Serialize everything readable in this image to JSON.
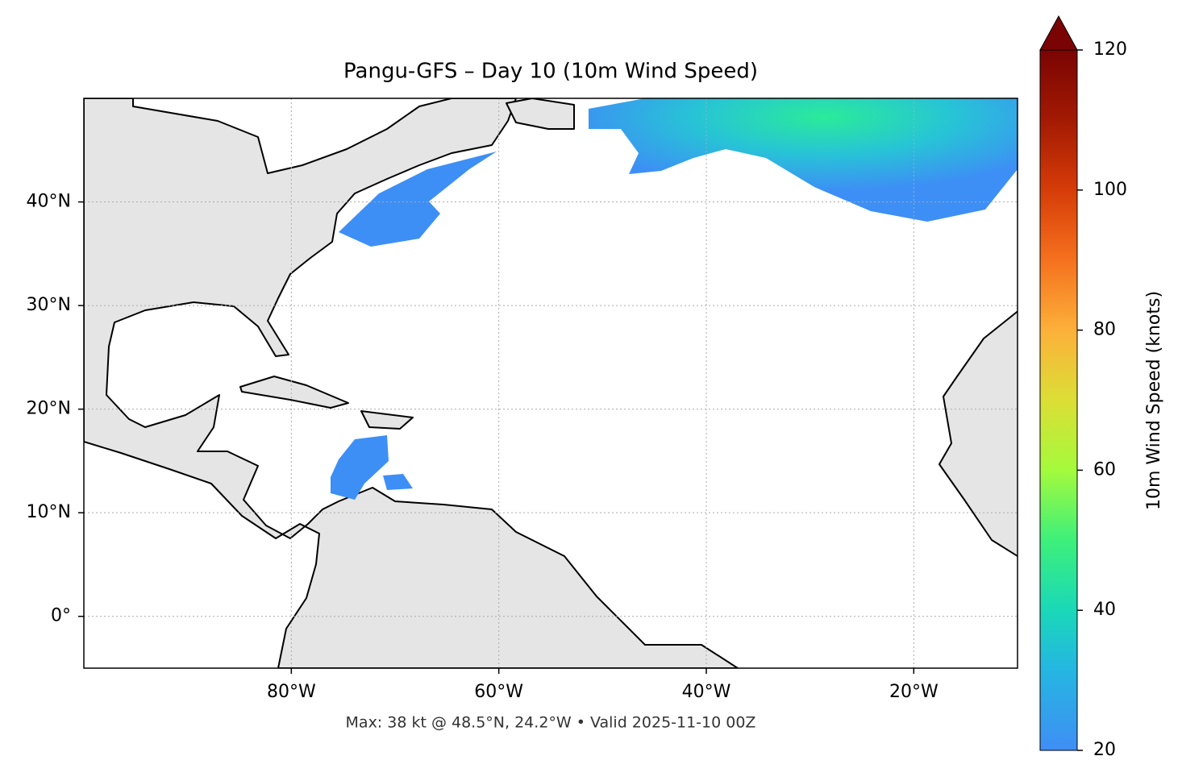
{
  "title": "Pangu-GFS – Day 10 (10m Wind Speed)",
  "footer": "Max: 38 kt @ 48.5°N, 24.2°W • Valid 2025-11-10 00Z",
  "map": {
    "xlim": [
      -100,
      -10
    ],
    "ylim": [
      -5,
      50
    ],
    "grid": true,
    "xticks": [
      {
        "value": -80,
        "label": "80°W"
      },
      {
        "value": -60,
        "label": "60°W"
      },
      {
        "value": -40,
        "label": "40°W"
      },
      {
        "value": -20,
        "label": "20°W"
      }
    ],
    "yticks": [
      {
        "value": 0,
        "label": "0°"
      },
      {
        "value": 10,
        "label": "10°N"
      },
      {
        "value": 20,
        "label": "20°N"
      },
      {
        "value": 30,
        "label": "30°N"
      },
      {
        "value": 40,
        "label": "40°N"
      }
    ]
  },
  "colorbar": {
    "label": "10m Wind Speed (knots)",
    "lim": [
      20,
      120
    ],
    "ticks": [
      20,
      40,
      60,
      80,
      100,
      120
    ]
  }
}
